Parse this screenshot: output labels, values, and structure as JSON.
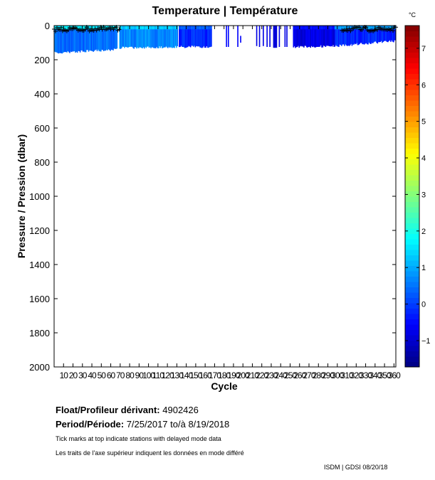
{
  "chart_data": {
    "type": "heatmap",
    "title": "Temperature | Température",
    "xlabel": "Cycle",
    "ylabel": "Pressure / Pression (dbar)",
    "xlim": [
      0,
      362
    ],
    "ylim": [
      2000,
      0
    ],
    "x_ticks": [
      "10",
      "20",
      "30",
      "40",
      "50",
      "60",
      "70",
      "80",
      "90",
      "100",
      "110",
      "120",
      "130",
      "140",
      "150",
      "160",
      "170",
      "180",
      "190",
      "200",
      "210",
      "220",
      "230",
      "240",
      "250",
      "260",
      "270",
      "280",
      "290",
      "300",
      "310",
      "320",
      "330",
      "340",
      "350",
      "360"
    ],
    "y_ticks": [
      "0",
      "200",
      "400",
      "600",
      "800",
      "1000",
      "1200",
      "1400",
      "1600",
      "1800",
      "2000"
    ],
    "colorbar": {
      "unit": "°C",
      "range": [
        -1.72,
        7.62
      ],
      "ticks": [
        "-1",
        "0",
        "1",
        "2",
        "3",
        "4",
        "5",
        "6",
        "7"
      ],
      "colormap": "jet"
    },
    "profile_segments": [
      {
        "cycles": [
          0,
          67
        ],
        "max_pressure_start": 160,
        "max_pressure_end": 140,
        "temp": 0.4,
        "surface_temp": 1.6
      },
      {
        "cycles": [
          69,
          131
        ],
        "max_pressure_start": 130,
        "max_pressure_end": 125,
        "temp": 0.7,
        "surface_temp": 1.3
      },
      {
        "cycles": [
          132,
          167
        ],
        "max_pressure_start": 125,
        "max_pressure_end": 125,
        "temp": -0.2,
        "surface_temp": 0.3
      },
      {
        "cycles": [
          253,
          297
        ],
        "max_pressure_start": 125,
        "max_pressure_end": 120,
        "temp": -0.8,
        "surface_temp": -0.4
      },
      {
        "cycles": [
          297,
          362
        ],
        "max_pressure_start": 120,
        "max_pressure_end": 90,
        "temp": -0.2,
        "surface_temp": 0.9
      }
    ],
    "sparse_profiles": [
      {
        "cycle": 182,
        "max_pressure": 125,
        "temp": -0.5
      },
      {
        "cycle": 184,
        "max_pressure": 125,
        "temp": -0.5
      },
      {
        "cycle": 194,
        "max_pressure": 125,
        "temp": -0.6
      },
      {
        "cycle": 197,
        "max_pressure": 100,
        "min_pressure": 60,
        "temp": -0.6
      },
      {
        "cycle": 214,
        "max_pressure": 120,
        "temp": -0.8
      },
      {
        "cycle": 217,
        "max_pressure": 125,
        "temp": -0.8
      },
      {
        "cycle": 221,
        "max_pressure": 120,
        "temp": -0.8
      },
      {
        "cycle": 225,
        "max_pressure": 125,
        "temp": -0.8
      },
      {
        "cycle": 228,
        "max_pressure": 125,
        "temp": -0.8
      },
      {
        "cycle": 232,
        "max_pressure": 130,
        "temp": -0.9
      },
      {
        "cycle": 233,
        "max_pressure": 130,
        "temp": -0.9
      },
      {
        "cycle": 234,
        "max_pressure": 130,
        "temp": -0.9
      },
      {
        "cycle": 235,
        "max_pressure": 130,
        "temp": -0.9
      },
      {
        "cycle": 238,
        "max_pressure": 125,
        "temp": -0.8
      },
      {
        "cycle": 244,
        "max_pressure": 125,
        "temp": -0.8
      },
      {
        "cycle": 246,
        "max_pressure": 125,
        "temp": -0.8
      }
    ],
    "delayed_mode_cycles": [
      [
        0,
        70
      ],
      [
        305,
        362
      ]
    ]
  },
  "info": {
    "float_label": "Float/Profileur dérivant:",
    "float_id": "4902426",
    "period_label": "Period/Période:",
    "period_value": "7/25/2017  to/à  8/19/2018",
    "note_en": "Tick marks at top indicate stations with delayed mode data",
    "note_fr": "Les traits de l'axe supérieur indiquent les données en mode différé",
    "footer": "ISDM | GDSI  08/20/18"
  }
}
